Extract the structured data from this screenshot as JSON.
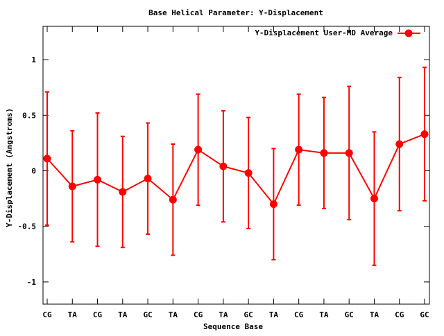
{
  "chart_data": {
    "type": "line",
    "title": "Base  Helical Parameter: Y-Displacement",
    "xlabel": "Sequence Base",
    "ylabel": "Y-Displacement (Angstroms)",
    "ylim": [
      -1.2,
      1.3
    ],
    "yticks": [
      -1,
      -0.5,
      0,
      0.5,
      1
    ],
    "ytick_labels": [
      "-1",
      "-0.5",
      "0",
      "0.5",
      "1"
    ],
    "categories": [
      "CG",
      "TA",
      "CG",
      "TA",
      "GC",
      "TA",
      "CG",
      "TA",
      "GC",
      "TA",
      "CG",
      "TA",
      "GC",
      "TA",
      "CG",
      "GC"
    ],
    "legend_position": "top-right",
    "grid": false,
    "series": [
      {
        "name": "Y-Displacement User-MD Average",
        "color": "#ff0000",
        "values": [
          0.11,
          -0.14,
          -0.08,
          -0.19,
          -0.07,
          -0.26,
          0.19,
          0.04,
          -0.02,
          -0.3,
          0.19,
          0.16,
          0.16,
          -0.25,
          0.24,
          0.33
        ],
        "error": [
          0.6,
          0.5,
          0.6,
          0.5,
          0.5,
          0.5,
          0.5,
          0.5,
          0.5,
          0.5,
          0.5,
          0.5,
          0.6,
          0.6,
          0.6,
          0.6
        ]
      }
    ]
  }
}
